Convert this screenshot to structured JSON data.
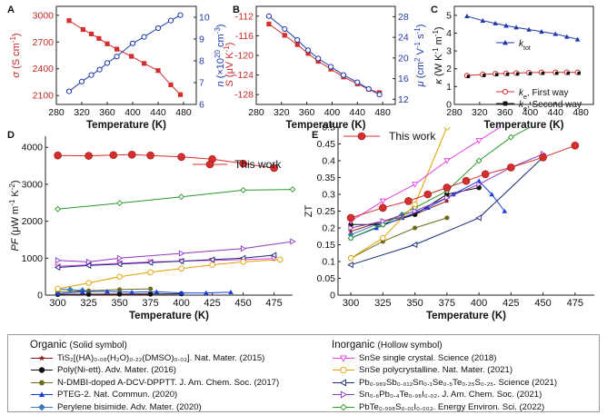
{
  "figure": {
    "panels": {
      "A": {
        "letter": "A"
      },
      "B": {
        "letter": "B"
      },
      "C": {
        "letter": "C"
      },
      "D": {
        "letter": "D"
      },
      "E": {
        "letter": "E"
      }
    }
  },
  "legend": {
    "organic_title": "Organic",
    "organic_sub": "(Solid symbol)",
    "inorganic_title": "Inorganic",
    "inorganic_sub": "(Hollow symbol)",
    "organic": [
      {
        "text": "TiS₂[(HA)₀.₀₈(H₂O)₀.₂₂(DMSO)₀.₀₃]. Nat. Mater. (2015)",
        "color": "#8b1a1a",
        "marker": "star-solid"
      },
      {
        "text": "Poly(Ni-ett). Adv. Mater. (2016)",
        "color": "#111111",
        "marker": "circle-solid"
      },
      {
        "text": "N-DMBI-doped A-DCV-DPPTT. J. Am. Chem. Soc. (2017)",
        "color": "#6b6b1a",
        "marker": "hex-solid"
      },
      {
        "text": "PTEG-2. Nat. Commun. (2020)",
        "color": "#1a3fd6",
        "marker": "triangle-solid"
      },
      {
        "text": "Perylene bisimide. Adv. Mater. (2020)",
        "color": "#3a7bbf",
        "marker": "diamond-solid"
      }
    ],
    "inorganic": [
      {
        "text": "SnSe single crystal. Science (2018)",
        "color": "#e040e0",
        "marker": "tri-down-hollow"
      },
      {
        "text": "SnSe polycrystalline. Nat. Mater. (2021)",
        "color": "#e0a000",
        "marker": "circle-hollow"
      },
      {
        "text": "Pb₀.₉₈₉Sb₀.₀₁₂Sn₀.₁Se₀.₅Te₀.₂₅S₀.₂₅. Science (2021)",
        "color": "#1a2a7a",
        "marker": "tri-left-hollow"
      },
      {
        "text": "Sn₀.₆Pb₀.₄Te₀.₉₈I₀.₀₂. J. Am. Chem. Soc. (2021)",
        "color": "#8a3ac0",
        "marker": "tri-right-hollow"
      },
      {
        "text": "PbTe₀.₉₉₈S₀.₀₁I₀.₀₀₃. Energy Environ. Sci. (2022)",
        "color": "#2a9a2a",
        "marker": "diamond-hollow"
      }
    ]
  },
  "chart_data": [
    {
      "panel": "A",
      "type": "line",
      "xlabel": "Temperature (K)",
      "ylabel_left": "σ (S cm⁻¹)",
      "ylabel_right": "n (×10²⁰ cm⁻³)",
      "xlim": [
        280,
        500
      ],
      "ylim_left": [
        2000,
        3100
      ],
      "ylim_right": [
        6,
        10.5
      ],
      "xticks": [
        280,
        320,
        360,
        400,
        440,
        480
      ],
      "yticks_left": [
        2100,
        2400,
        2700,
        3000
      ],
      "yticks_right": [
        6,
        7,
        8,
        9,
        10
      ],
      "series": [
        {
          "axis": "left",
          "color": "#d32f2f",
          "marker": "square",
          "x": [
            300,
            322,
            335,
            347,
            360,
            375,
            398,
            418,
            440,
            460,
            475
          ],
          "y": [
            2940,
            2840,
            2790,
            2740,
            2680,
            2620,
            2540,
            2460,
            2380,
            2220,
            2110
          ]
        },
        {
          "axis": "right",
          "color": "#1f3aa8",
          "marker": "circle",
          "x": [
            300,
            320,
            335,
            348,
            360,
            375,
            400,
            418,
            440,
            460,
            475
          ],
          "y": [
            6.6,
            7.05,
            7.35,
            7.6,
            7.9,
            8.2,
            8.8,
            9.1,
            9.5,
            9.85,
            10.1
          ]
        }
      ]
    },
    {
      "panel": "B",
      "type": "line",
      "xlabel": "Temperature (K)",
      "ylabel_left": "S (μV K⁻¹)",
      "ylabel_right": "μ (cm² V⁻¹ s⁻¹)",
      "xlim": [
        280,
        500
      ],
      "ylim_left": [
        -130,
        -110
      ],
      "ylim_right": [
        11,
        30
      ],
      "xticks": [
        280,
        320,
        360,
        400,
        440,
        480
      ],
      "yticks_left": [
        -112,
        -116,
        -120,
        -124,
        -128
      ],
      "yticks_right": [
        12,
        16,
        20,
        24,
        28
      ],
      "series": [
        {
          "axis": "left",
          "color": "#d32f2f",
          "marker": "square",
          "x": [
            300,
            325,
            345,
            362,
            378,
            398,
            418,
            440,
            458,
            475
          ],
          "y": [
            -113.6,
            -115.9,
            -117.8,
            -119.6,
            -121.2,
            -122.8,
            -124.4,
            -125.8,
            -126.9,
            -127.6
          ]
        },
        {
          "axis": "right",
          "color": "#1f3aa8",
          "marker": "circle",
          "x": [
            300,
            325,
            345,
            362,
            378,
            398,
            418,
            440,
            458,
            475
          ],
          "y": [
            28.1,
            25.6,
            23.5,
            21.5,
            19.9,
            18.3,
            16.7,
            15.3,
            14.0,
            12.9
          ]
        }
      ]
    },
    {
      "panel": "C",
      "type": "line",
      "xlabel": "Temperature (K)",
      "ylabel": "κ (W K⁻¹ m⁻¹)",
      "xlim": [
        280,
        500
      ],
      "ylim": [
        0,
        5.5
      ],
      "xticks": [
        280,
        320,
        360,
        400,
        440,
        480
      ],
      "yticks": [
        0,
        1,
        2,
        3,
        4,
        5
      ],
      "series": [
        {
          "name": "k_tot",
          "color": "#1f3aa8",
          "marker": "triangle",
          "x": [
            300,
            325,
            345,
            362,
            378,
            398,
            418,
            440,
            458,
            475
          ],
          "y": [
            4.95,
            4.7,
            4.55,
            4.42,
            4.32,
            4.2,
            4.08,
            3.95,
            3.8,
            3.65
          ]
        },
        {
          "name": "k_e, First way",
          "color": "#d32f2f",
          "marker": "circle",
          "x": [
            300,
            325,
            345,
            362,
            378,
            398,
            418,
            440,
            458,
            475
          ],
          "y": [
            1.62,
            1.68,
            1.72,
            1.74,
            1.76,
            1.78,
            1.8,
            1.8,
            1.8,
            1.8
          ]
        },
        {
          "name": "k_e, Second way",
          "color": "#111111",
          "marker": "square",
          "x": [
            300,
            325,
            345,
            362,
            378,
            398,
            418,
            440,
            458,
            475
          ],
          "y": [
            1.62,
            1.68,
            1.72,
            1.74,
            1.76,
            1.78,
            1.8,
            1.8,
            1.8,
            1.8
          ]
        }
      ],
      "legend_labels": {
        "ktot_k": "k",
        "ktot_sub": "tot",
        "ke_k": "k",
        "ke_sub": "e",
        "first": ", First way",
        "second": ", Second way"
      }
    },
    {
      "panel": "D",
      "type": "line",
      "xlabel": "Temperature (K)",
      "ylabel": "PF (μW m⁻¹ K⁻²)",
      "xlim": [
        290,
        490
      ],
      "ylim": [
        0,
        4300
      ],
      "xticks": [
        300,
        325,
        350,
        375,
        400,
        425,
        450,
        475
      ],
      "yticks": [
        0,
        1000,
        2000,
        3000,
        4000
      ],
      "series": [
        {
          "name": "This work",
          "color": "#d32f2f",
          "marker": "big-circle-solid",
          "x": [
            300,
            325,
            345,
            360,
            375,
            400,
            425,
            450,
            475
          ],
          "y": [
            3780,
            3770,
            3790,
            3800,
            3780,
            3740,
            3680,
            3560,
            3440
          ]
        },
        {
          "color": "#2a9a2a",
          "marker": "diamond-hollow",
          "x": [
            300,
            350,
            400,
            450,
            490
          ],
          "y": [
            2330,
            2490,
            2660,
            2840,
            2860
          ]
        },
        {
          "color": "#8a3ac0",
          "marker": "tri-right-hollow",
          "x": [
            300,
            325,
            350,
            400,
            450,
            490
          ],
          "y": [
            940,
            900,
            1000,
            1130,
            1260,
            1450
          ]
        },
        {
          "color": "#e0a000",
          "marker": "circle-hollow",
          "x": [
            300,
            325,
            350,
            375,
            400,
            425,
            450,
            480
          ],
          "y": [
            170,
            330,
            500,
            620,
            720,
            820,
            900,
            960
          ]
        },
        {
          "color": "#1a2a7a",
          "marker": "tri-left-hollow",
          "x": [
            300,
            325,
            350,
            375,
            400,
            425,
            450,
            475
          ],
          "y": [
            750,
            800,
            840,
            880,
            920,
            960,
            1000,
            1080
          ]
        },
        {
          "color": "#e040e0",
          "marker": "tri-down-hollow",
          "x": [
            300,
            325,
            350,
            375,
            400,
            425,
            450,
            475
          ],
          "y": [
            780,
            820,
            860,
            900,
            920,
            940,
            960,
            990
          ]
        },
        {
          "color": "#1a3fd6",
          "marker": "triangle-solid",
          "x": [
            300,
            320,
            340,
            360,
            380,
            400,
            420,
            440
          ],
          "y": [
            40,
            90,
            100,
            80,
            90,
            60,
            60,
            80
          ]
        },
        {
          "color": "#6b6b1a",
          "marker": "hex-solid",
          "x": [
            300,
            325,
            350,
            375
          ],
          "y": [
            90,
            120,
            150,
            170
          ]
        },
        {
          "color": "#111111",
          "marker": "circle-solid",
          "x": [
            300,
            325,
            350,
            375,
            400
          ],
          "y": [
            20,
            25,
            30,
            30,
            35
          ]
        },
        {
          "color": "#3a7bbf",
          "marker": "diamond-solid",
          "x": [
            300,
            310,
            320
          ],
          "y": [
            170,
            150,
            130
          ]
        },
        {
          "color": "#8b1a1a",
          "marker": "star-solid",
          "x": [
            300,
            325,
            350,
            375
          ],
          "y": [
            10,
            12,
            15,
            18
          ]
        }
      ]
    },
    {
      "panel": "E",
      "type": "line",
      "xlabel": "Temperature (K)",
      "ylabel": "ZT",
      "xlim": [
        290,
        490
      ],
      "ylim": [
        0,
        0.5
      ],
      "xticks": [
        300,
        325,
        350,
        375,
        400,
        425,
        450,
        475
      ],
      "yticks": [
        0.0,
        0.05,
        0.1,
        0.15,
        0.2,
        0.25,
        0.3,
        0.35,
        0.4,
        0.45,
        0.5
      ],
      "series": [
        {
          "name": "This work",
          "color": "#d32f2f",
          "marker": "big-circle-solid",
          "x": [
            300,
            325,
            345,
            360,
            375,
            390,
            405,
            425,
            450,
            475
          ],
          "y": [
            0.23,
            0.26,
            0.28,
            0.3,
            0.32,
            0.34,
            0.36,
            0.38,
            0.41,
            0.445
          ]
        },
        {
          "color": "#e040e0",
          "marker": "tri-down-hollow",
          "x": [
            300,
            325,
            350,
            375,
            400,
            425
          ],
          "y": [
            0.22,
            0.28,
            0.33,
            0.4,
            0.46,
            0.52
          ]
        },
        {
          "color": "#e0a000",
          "marker": "circle-hollow",
          "x": [
            300,
            325,
            350,
            375
          ],
          "y": [
            0.11,
            0.17,
            0.27,
            0.5
          ]
        },
        {
          "color": "#1a2a7a",
          "marker": "tri-left-hollow",
          "x": [
            300,
            350,
            400,
            450
          ],
          "y": [
            0.09,
            0.15,
            0.23,
            0.41
          ]
        },
        {
          "color": "#8a3ac0",
          "marker": "tri-right-hollow",
          "x": [
            300,
            325,
            350,
            375,
            400,
            425,
            450
          ],
          "y": [
            0.2,
            0.22,
            0.25,
            0.29,
            0.33,
            0.38,
            0.42
          ]
        },
        {
          "color": "#2a9a2a",
          "marker": "diamond-hollow",
          "x": [
            300,
            325,
            350,
            375,
            400,
            425,
            450
          ],
          "y": [
            0.17,
            0.21,
            0.26,
            0.31,
            0.4,
            0.47,
            0.52
          ]
        },
        {
          "color": "#1a3fd6",
          "marker": "triangle-solid",
          "x": [
            300,
            320,
            340,
            360,
            380,
            400,
            410,
            420
          ],
          "y": [
            0.17,
            0.2,
            0.23,
            0.26,
            0.3,
            0.34,
            0.3,
            0.25
          ]
        },
        {
          "color": "#111111",
          "marker": "circle-solid",
          "x": [
            300,
            325,
            350,
            375,
            400
          ],
          "y": [
            0.21,
            0.21,
            0.24,
            0.3,
            0.32
          ]
        },
        {
          "color": "#6b6b1a",
          "marker": "hex-solid",
          "x": [
            300,
            325,
            350,
            375
          ],
          "y": [
            0.11,
            0.16,
            0.2,
            0.23
          ]
        },
        {
          "color": "#8b1a1a",
          "marker": "star-solid",
          "x": [
            300,
            325,
            350,
            375
          ],
          "y": [
            0.19,
            0.22,
            0.24,
            0.28
          ]
        },
        {
          "color": "#3a7bbf",
          "marker": "diamond-solid",
          "x": [
            300,
            320,
            340
          ],
          "y": [
            0.18,
            0.21,
            0.24
          ]
        }
      ]
    }
  ],
  "labels": {
    "this_work": "This work"
  }
}
